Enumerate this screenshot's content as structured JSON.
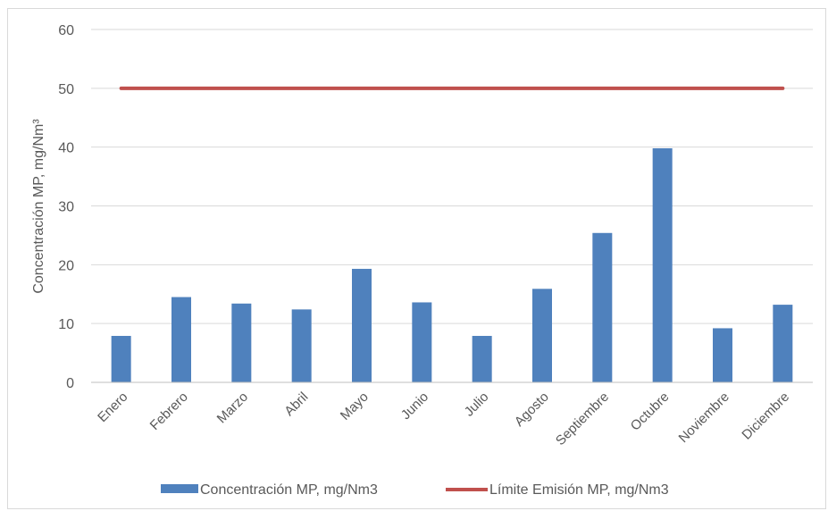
{
  "chart_data": {
    "type": "bar",
    "categories": [
      "Enero",
      "Febrero",
      "Marzo",
      "Abril",
      "Mayo",
      "Junio",
      "Julio",
      "Agosto",
      "Septiembre",
      "Octubre",
      "Noviembre",
      "Diciembre"
    ],
    "series": [
      {
        "name": "Concentración MP, mg/Nm3",
        "kind": "bar",
        "color": "#4F81BD",
        "values": [
          7.9,
          14.5,
          13.4,
          12.4,
          19.3,
          13.6,
          7.9,
          15.9,
          25.4,
          39.8,
          9.2,
          13.2
        ]
      },
      {
        "name": "Límite Emisión MP, mg/Nm3",
        "kind": "line",
        "color": "#C0504D",
        "values": [
          50,
          50,
          50,
          50,
          50,
          50,
          50,
          50,
          50,
          50,
          50,
          50
        ]
      }
    ],
    "ylabel": "Concentración MP, mg/Nm³",
    "xlabel": "",
    "ylim": [
      0,
      60
    ],
    "yticks": [
      0,
      10,
      20,
      30,
      40,
      50,
      60
    ],
    "grid": true,
    "legend_position": "bottom"
  }
}
